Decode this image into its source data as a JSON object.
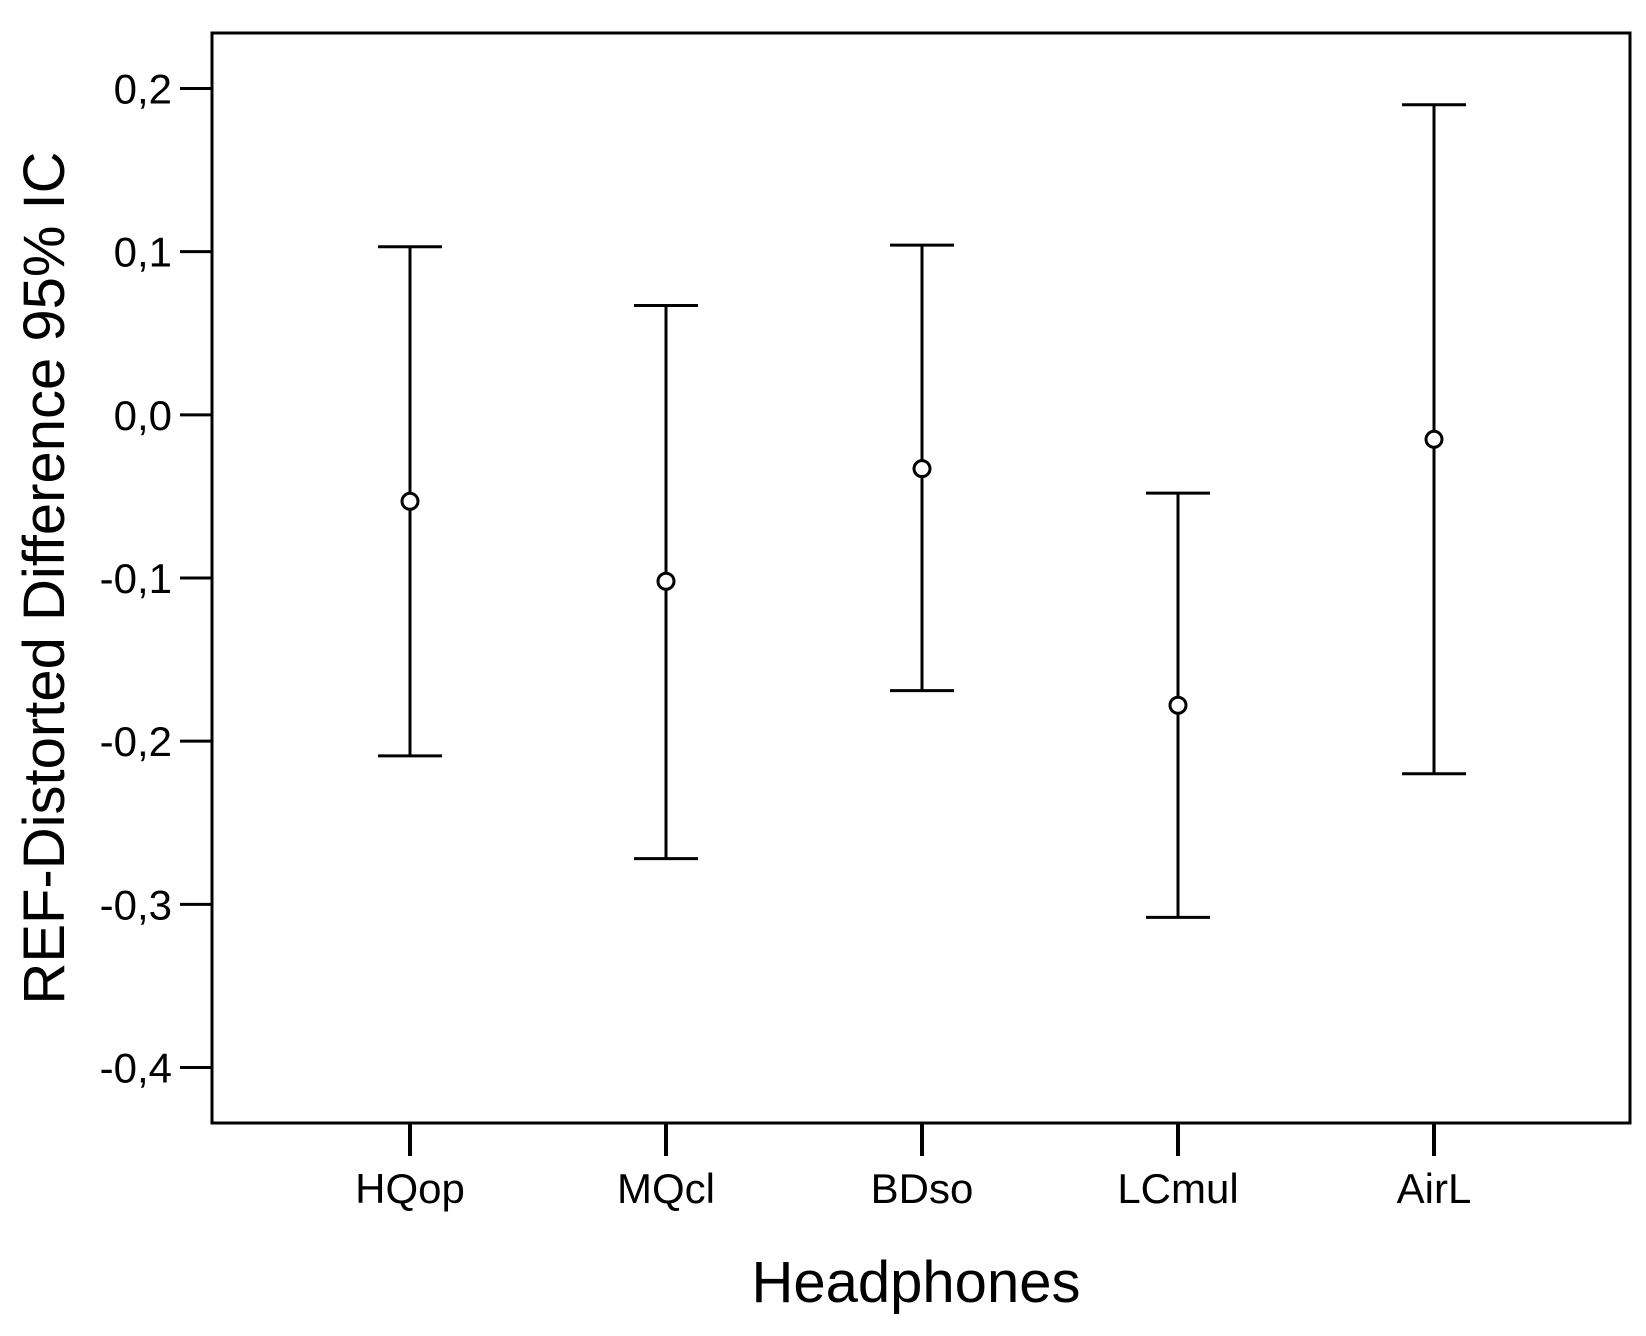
{
  "chart_data": {
    "type": "errorbar",
    "categories": [
      "HQop",
      "MQcl",
      "BDso",
      "LCmul",
      "AirL"
    ],
    "means": [
      -0.053,
      -0.102,
      -0.033,
      -0.178,
      -0.015
    ],
    "ci_lower": [
      -0.209,
      -0.272,
      -0.169,
      -0.308,
      -0.22
    ],
    "ci_upper": [
      0.103,
      0.067,
      0.104,
      -0.048,
      0.19
    ],
    "ylim": [
      -0.434,
      0.234
    ],
    "yticks": [
      0.2,
      0.1,
      0.0,
      -0.1,
      -0.2,
      -0.3,
      -0.4
    ],
    "ytick_labels": [
      "0,2",
      "0,1",
      "0,0",
      "-0,1",
      "-0,2",
      "-0,3",
      "-0,4"
    ],
    "xlabel": "Headphones",
    "ylabel": "REF-Distorted Difference 95% IC",
    "grid": false,
    "colors": {
      "line": "#000000",
      "background": "#ffffff"
    }
  }
}
